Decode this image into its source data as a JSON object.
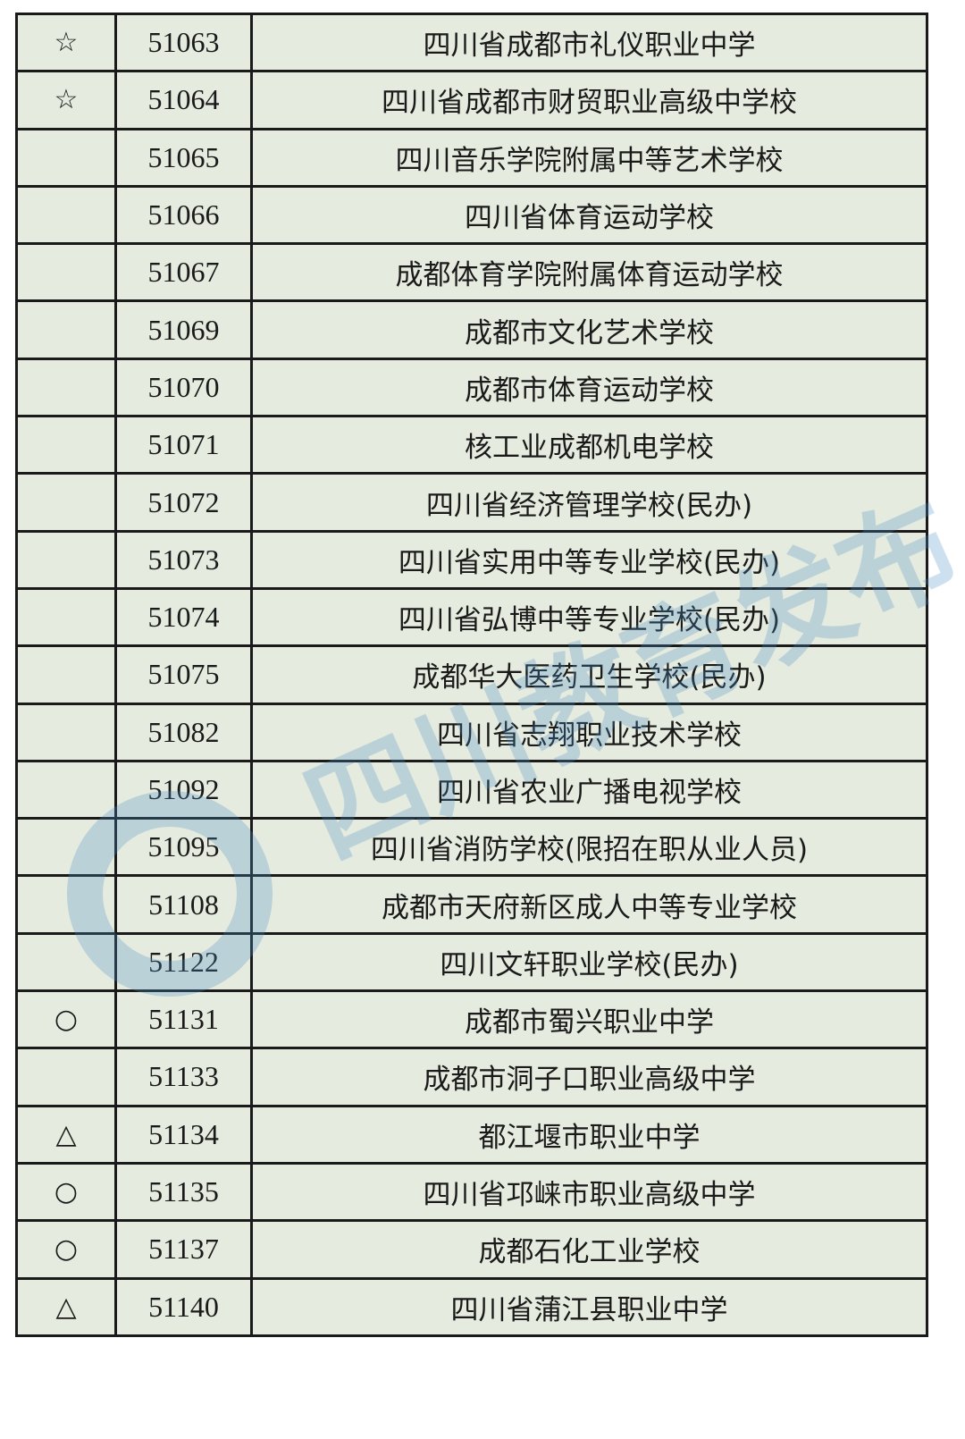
{
  "watermark": {
    "text": "四川教育发布",
    "color": "#4d8fc9"
  },
  "rows": [
    {
      "mark": "☆",
      "code": "51063",
      "name": "四川省成都市礼仪职业中学"
    },
    {
      "mark": "☆",
      "code": "51064",
      "name": "四川省成都市财贸职业高级中学校"
    },
    {
      "mark": "",
      "code": "51065",
      "name": "四川音乐学院附属中等艺术学校"
    },
    {
      "mark": "",
      "code": "51066",
      "name": "四川省体育运动学校"
    },
    {
      "mark": "",
      "code": "51067",
      "name": "成都体育学院附属体育运动学校"
    },
    {
      "mark": "",
      "code": "51069",
      "name": "成都市文化艺术学校"
    },
    {
      "mark": "",
      "code": "51070",
      "name": "成都市体育运动学校"
    },
    {
      "mark": "",
      "code": "51071",
      "name": "核工业成都机电学校"
    },
    {
      "mark": "",
      "code": "51072",
      "name": "四川省经济管理学校(民办)"
    },
    {
      "mark": "",
      "code": "51073",
      "name": "四川省实用中等专业学校(民办)"
    },
    {
      "mark": "",
      "code": "51074",
      "name": "四川省弘博中等专业学校(民办)"
    },
    {
      "mark": "",
      "code": "51075",
      "name": "成都华大医药卫生学校(民办)"
    },
    {
      "mark": "",
      "code": "51082",
      "name": "四川省志翔职业技术学校"
    },
    {
      "mark": "",
      "code": "51092",
      "name": "四川省农业广播电视学校"
    },
    {
      "mark": "",
      "code": "51095",
      "name": "四川省消防学校(限招在职从业人员)"
    },
    {
      "mark": "",
      "code": "51108",
      "name": "成都市天府新区成人中等专业学校"
    },
    {
      "mark": "",
      "code": "51122",
      "name": "四川文轩职业学校(民办)"
    },
    {
      "mark": "○",
      "code": "51131",
      "name": "成都市蜀兴职业中学"
    },
    {
      "mark": "",
      "code": "51133",
      "name": "成都市洞子口职业高级中学"
    },
    {
      "mark": "△",
      "code": "51134",
      "name": "都江堰市职业中学"
    },
    {
      "mark": "○",
      "code": "51135",
      "name": "四川省邛崃市职业高级中学"
    },
    {
      "mark": "○",
      "code": "51137",
      "name": "成都石化工业学校"
    },
    {
      "mark": "△",
      "code": "51140",
      "name": "四川省蒲江县职业中学"
    }
  ]
}
